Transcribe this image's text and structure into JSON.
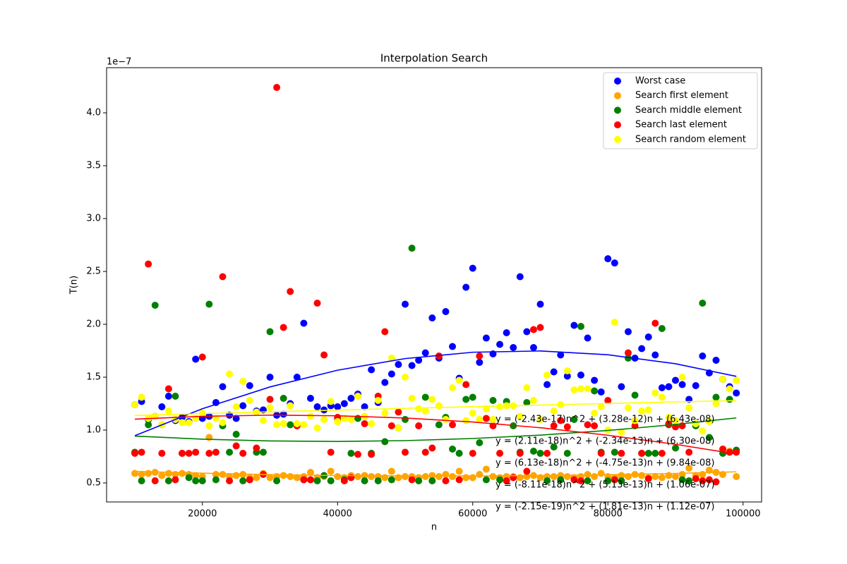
{
  "chart_data": {
    "type": "scatter",
    "title": "Interpolation Search",
    "xlabel": "n",
    "ylabel": "T(n)",
    "y_offset_label": "1e−7",
    "xlim": [
      5822,
      102740
    ],
    "ylim": [
      0.32,
      4.427
    ],
    "xticks": [
      20000,
      40000,
      60000,
      80000,
      100000
    ],
    "yticks": [
      0.5,
      {
        "value": 1.0,
        "label": "1.0"
      },
      1.5,
      {
        "value": 2.0,
        "label": "2.0"
      },
      2.5,
      {
        "value": 3.0,
        "label": "3.0"
      },
      3.5,
      {
        "value": 4.0,
        "label": "4.0"
      }
    ],
    "legend_position": "upper right",
    "x": [
      10000,
      11000,
      12000,
      13000,
      14000,
      15000,
      16000,
      17000,
      18000,
      19000,
      20000,
      21000,
      22000,
      23000,
      24000,
      25000,
      26000,
      27000,
      28000,
      29000,
      30000,
      31000,
      32000,
      33000,
      34000,
      35000,
      36000,
      37000,
      38000,
      39000,
      40000,
      41000,
      42000,
      43000,
      44000,
      45000,
      46000,
      47000,
      48000,
      49000,
      50000,
      51000,
      52000,
      53000,
      54000,
      55000,
      56000,
      57000,
      58000,
      59000,
      60000,
      61000,
      62000,
      63000,
      64000,
      65000,
      66000,
      67000,
      68000,
      69000,
      70000,
      71000,
      72000,
      73000,
      74000,
      75000,
      76000,
      77000,
      78000,
      79000,
      80000,
      81000,
      82000,
      83000,
      84000,
      85000,
      86000,
      87000,
      88000,
      89000,
      90000,
      91000,
      92000,
      93000,
      94000,
      95000,
      96000,
      97000,
      98000,
      99000
    ],
    "fit_x": [
      10000,
      20000,
      30000,
      40000,
      50000,
      60000,
      70000,
      80000,
      90000,
      99000
    ],
    "series": [
      {
        "name": "Worst case",
        "color": "#0000ff",
        "values": [
          1.24,
          1.27,
          1.1,
          1.13,
          1.22,
          1.32,
          1.09,
          1.12,
          1.08,
          1.67,
          1.11,
          1.13,
          1.26,
          1.41,
          1.14,
          1.11,
          1.23,
          1.42,
          1.18,
          1.19,
          1.5,
          1.14,
          1.15,
          1.25,
          1.5,
          2.01,
          1.3,
          1.22,
          1.19,
          1.23,
          1.22,
          1.25,
          1.3,
          1.34,
          1.22,
          1.57,
          1.26,
          1.45,
          1.53,
          1.62,
          2.19,
          1.61,
          1.66,
          1.73,
          2.06,
          1.68,
          2.12,
          1.79,
          1.49,
          2.35,
          2.53,
          1.64,
          1.87,
          1.72,
          1.81,
          1.92,
          1.78,
          2.45,
          1.93,
          1.78,
          2.19,
          1.43,
          1.55,
          1.71,
          1.51,
          1.99,
          1.52,
          1.87,
          1.47,
          1.36,
          2.62,
          2.58,
          1.41,
          1.93,
          1.68,
          1.77,
          1.88,
          1.71,
          1.4,
          1.41,
          1.47,
          1.43,
          1.29,
          1.42,
          1.7,
          1.54,
          1.66,
          1.48,
          1.41,
          1.35
        ],
        "fit_values": [
          0.947,
          1.202,
          1.408,
          1.566,
          1.676,
          1.736,
          1.748,
          1.712,
          1.627,
          1.508
        ],
        "equation": "y = (-2.43e-17)n^2 + (3.28e-12)n + (6.43e-08)"
      },
      {
        "name": "Search first element",
        "color": "#ffa500",
        "values": [
          0.59,
          0.58,
          0.59,
          0.6,
          0.57,
          0.59,
          0.58,
          0.59,
          0.58,
          0.57,
          0.56,
          0.93,
          0.58,
          0.58,
          0.56,
          0.57,
          0.58,
          0.55,
          0.55,
          0.59,
          0.55,
          0.56,
          0.57,
          0.56,
          0.55,
          0.56,
          0.6,
          0.55,
          0.56,
          0.61,
          0.56,
          0.55,
          0.57,
          0.56,
          0.57,
          0.56,
          0.56,
          0.55,
          0.61,
          0.55,
          0.56,
          0.56,
          0.55,
          0.56,
          0.57,
          0.56,
          0.58,
          0.56,
          0.61,
          0.55,
          0.55,
          0.58,
          0.63,
          0.56,
          0.55,
          0.56,
          0.56,
          0.55,
          0.56,
          0.57,
          0.55,
          0.56,
          0.56,
          0.57,
          0.56,
          0.55,
          0.56,
          0.58,
          0.56,
          0.59,
          0.56,
          0.55,
          0.57,
          0.56,
          0.58,
          0.57,
          0.55,
          0.56,
          0.55,
          0.57,
          0.56,
          0.58,
          0.64,
          0.57,
          0.58,
          0.62,
          0.6,
          0.58,
          0.8,
          0.56
        ],
        "fit_values": [
          0.609,
          0.592,
          0.579,
          0.57,
          0.566,
          0.566,
          0.57,
          0.578,
          0.59,
          0.605
        ],
        "equation": "y = (2.11e-18)n^2 + (-2.34e-13)n + (6.30e-08)"
      },
      {
        "name": "Search middle element",
        "color": "#008000",
        "values": [
          0.79,
          0.52,
          1.05,
          2.18,
          1.05,
          0.52,
          1.32,
          0.78,
          0.55,
          0.52,
          0.52,
          2.19,
          0.53,
          1.04,
          0.79,
          0.96,
          0.52,
          0.53,
          0.79,
          0.79,
          1.93,
          0.52,
          1.3,
          1.05,
          1.04,
          0.53,
          0.53,
          0.52,
          0.57,
          0.52,
          1.1,
          0.53,
          0.78,
          1.11,
          0.52,
          0.78,
          0.52,
          0.89,
          0.53,
          1.02,
          1.1,
          2.72,
          0.52,
          1.31,
          0.52,
          1.05,
          1.12,
          0.82,
          0.78,
          1.29,
          1.31,
          0.88,
          0.53,
          1.28,
          0.53,
          1.27,
          1.04,
          0.79,
          1.26,
          0.8,
          0.78,
          0.52,
          0.84,
          0.53,
          0.78,
          1.1,
          1.98,
          0.52,
          1.37,
          0.79,
          0.52,
          0.79,
          0.52,
          1.68,
          1.33,
          0.78,
          0.78,
          0.78,
          1.96,
          1.05,
          0.83,
          0.53,
          0.52,
          1.04,
          2.2,
          0.93,
          1.31,
          0.78,
          1.29,
          0.81
        ],
        "fit_values": [
          0.943,
          0.914,
          0.897,
          0.892,
          0.9,
          0.92,
          0.952,
          0.996,
          1.053,
          1.115
        ],
        "equation": "y = (6.13e-18)n^2 + (-4.75e-13)n + (9.84e-08)"
      },
      {
        "name": "Search last element",
        "color": "#ff0000",
        "values": [
          0.78,
          0.79,
          2.57,
          0.52,
          0.78,
          1.39,
          0.53,
          0.78,
          0.78,
          0.79,
          1.69,
          0.78,
          0.79,
          2.45,
          0.52,
          0.85,
          0.78,
          0.53,
          0.83,
          0.58,
          1.29,
          4.24,
          1.97,
          2.31,
          1.04,
          0.53,
          0.53,
          2.2,
          1.71,
          0.79,
          1.12,
          0.52,
          0.55,
          0.77,
          1.06,
          0.77,
          1.32,
          1.93,
          1.04,
          1.17,
          0.79,
          0.53,
          1.04,
          0.79,
          0.83,
          1.7,
          0.52,
          1.05,
          0.53,
          1.43,
          0.78,
          1.7,
          1.11,
          1.04,
          0.78,
          0.52,
          0.55,
          0.78,
          0.61,
          1.95,
          1.97,
          0.78,
          1.04,
          1.09,
          1.03,
          0.53,
          0.52,
          1.05,
          1.04,
          0.78,
          1.28,
          0.53,
          0.78,
          1.73,
          1.04,
          0.78,
          0.54,
          2.01,
          0.78,
          1.06,
          1.03,
          1.04,
          0.79,
          0.54,
          0.52,
          0.53,
          0.51,
          0.82,
          0.79,
          0.79
        ],
        "fit_values": [
          1.103,
          1.13,
          1.141,
          1.135,
          1.114,
          1.076,
          1.022,
          0.951,
          0.865,
          0.773
        ],
        "equation": "y = (-8.11e-18)n^2 + (5.13e-13)n + (1.06e-07)"
      },
      {
        "name": "Search random element",
        "color": "#ffff00",
        "values": [
          1.24,
          1.31,
          1.11,
          1.13,
          1.05,
          1.18,
          1.1,
          1.07,
          1.07,
          1.11,
          1.16,
          1.04,
          1.11,
          1.07,
          1.53,
          1.22,
          1.46,
          1.28,
          1.17,
          1.09,
          1.21,
          1.05,
          1.06,
          1.23,
          1.06,
          1.05,
          1.13,
          1.02,
          1.1,
          1.27,
          1.08,
          1.11,
          1.1,
          1.32,
          1.13,
          1.06,
          1.28,
          1.16,
          1.68,
          1.02,
          1.5,
          1.3,
          1.2,
          1.18,
          1.29,
          1.23,
          1.1,
          1.4,
          1.47,
          1.09,
          1.16,
          1.1,
          1.2,
          1.1,
          1.22,
          1.23,
          1.23,
          1.13,
          1.4,
          1.28,
          1.1,
          1.52,
          1.18,
          1.24,
          1.56,
          1.38,
          1.39,
          1.39,
          1.16,
          1.22,
          1.0,
          2.02,
          0.98,
          1.21,
          1.09,
          1.18,
          1.19,
          1.35,
          1.31,
          1.12,
          1.09,
          1.5,
          1.21,
          1.06,
          0.99,
          1.08,
          1.25,
          1.48,
          1.39,
          1.47
        ],
        "fit_values": [
          1.138,
          1.155,
          1.172,
          1.189,
          1.205,
          1.221,
          1.236,
          1.251,
          1.266,
          1.278
        ],
        "equation": "y = (-2.15e-19)n^2 + (1.81e-13)n + (1.12e-07)"
      }
    ]
  }
}
